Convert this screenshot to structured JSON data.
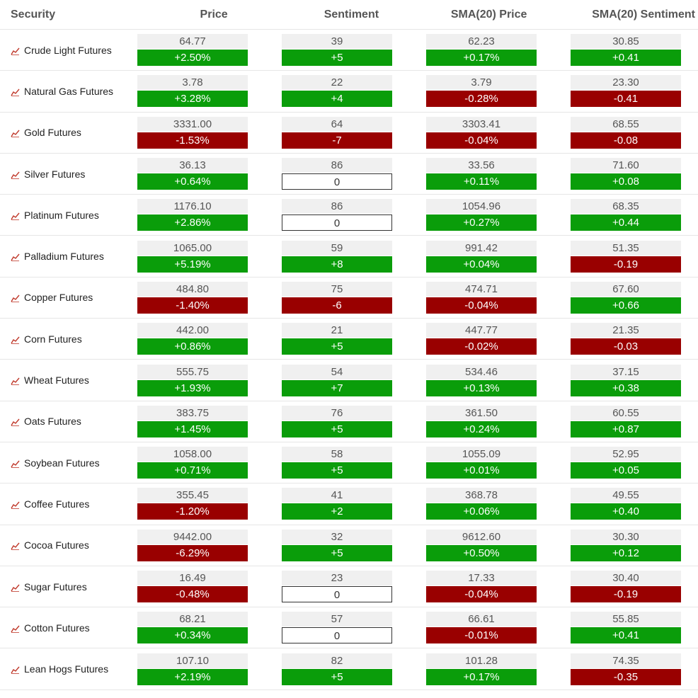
{
  "columns": {
    "security": "Security",
    "price": "Price",
    "sentiment": "Sentiment",
    "sma_price": "SMA(20) Price",
    "sma_sentiment": "SMA(20) Sentiment"
  },
  "icon": "chart-line-icon",
  "colors": {
    "up": "#0a9d0a",
    "down": "#990000"
  },
  "rows": [
    {
      "name": "Crude Light Futures",
      "price": "64.77",
      "price_chg": "+2.50%",
      "sent": "39",
      "sent_chg": "+5",
      "sma_price": "62.23",
      "sma_price_chg": "+0.17%",
      "sma_sent": "30.85",
      "sma_sent_chg": "+0.41"
    },
    {
      "name": "Natural Gas Futures",
      "price": "3.78",
      "price_chg": "+3.28%",
      "sent": "22",
      "sent_chg": "+4",
      "sma_price": "3.79",
      "sma_price_chg": "-0.28%",
      "sma_sent": "23.30",
      "sma_sent_chg": "-0.41"
    },
    {
      "name": "Gold Futures",
      "price": "3331.00",
      "price_chg": "-1.53%",
      "sent": "64",
      "sent_chg": "-7",
      "sma_price": "3303.41",
      "sma_price_chg": "-0.04%",
      "sma_sent": "68.55",
      "sma_sent_chg": "-0.08"
    },
    {
      "name": "Silver Futures",
      "price": "36.13",
      "price_chg": "+0.64%",
      "sent": "86",
      "sent_chg": "0",
      "sma_price": "33.56",
      "sma_price_chg": "+0.11%",
      "sma_sent": "71.60",
      "sma_sent_chg": "+0.08"
    },
    {
      "name": "Platinum Futures",
      "price": "1176.10",
      "price_chg": "+2.86%",
      "sent": "86",
      "sent_chg": "0",
      "sma_price": "1054.96",
      "sma_price_chg": "+0.27%",
      "sma_sent": "68.35",
      "sma_sent_chg": "+0.44"
    },
    {
      "name": "Palladium Futures",
      "price": "1065.00",
      "price_chg": "+5.19%",
      "sent": "59",
      "sent_chg": "+8",
      "sma_price": "991.42",
      "sma_price_chg": "+0.04%",
      "sma_sent": "51.35",
      "sma_sent_chg": "-0.19"
    },
    {
      "name": "Copper Futures",
      "price": "484.80",
      "price_chg": "-1.40%",
      "sent": "75",
      "sent_chg": "-6",
      "sma_price": "474.71",
      "sma_price_chg": "-0.04%",
      "sma_sent": "67.60",
      "sma_sent_chg": "+0.66"
    },
    {
      "name": "Corn Futures",
      "price": "442.00",
      "price_chg": "+0.86%",
      "sent": "21",
      "sent_chg": "+5",
      "sma_price": "447.77",
      "sma_price_chg": "-0.02%",
      "sma_sent": "21.35",
      "sma_sent_chg": "-0.03"
    },
    {
      "name": "Wheat Futures",
      "price": "555.75",
      "price_chg": "+1.93%",
      "sent": "54",
      "sent_chg": "+7",
      "sma_price": "534.46",
      "sma_price_chg": "+0.13%",
      "sma_sent": "37.15",
      "sma_sent_chg": "+0.38"
    },
    {
      "name": "Oats Futures",
      "price": "383.75",
      "price_chg": "+1.45%",
      "sent": "76",
      "sent_chg": "+5",
      "sma_price": "361.50",
      "sma_price_chg": "+0.24%",
      "sma_sent": "60.55",
      "sma_sent_chg": "+0.87"
    },
    {
      "name": "Soybean Futures",
      "price": "1058.00",
      "price_chg": "+0.71%",
      "sent": "58",
      "sent_chg": "+5",
      "sma_price": "1055.09",
      "sma_price_chg": "+0.01%",
      "sma_sent": "52.95",
      "sma_sent_chg": "+0.05"
    },
    {
      "name": "Coffee Futures",
      "price": "355.45",
      "price_chg": "-1.20%",
      "sent": "41",
      "sent_chg": "+2",
      "sma_price": "368.78",
      "sma_price_chg": "+0.06%",
      "sma_sent": "49.55",
      "sma_sent_chg": "+0.40"
    },
    {
      "name": "Cocoa Futures",
      "price": "9442.00",
      "price_chg": "-6.29%",
      "sent": "32",
      "sent_chg": "+5",
      "sma_price": "9612.60",
      "sma_price_chg": "+0.50%",
      "sma_sent": "30.30",
      "sma_sent_chg": "+0.12"
    },
    {
      "name": "Sugar Futures",
      "price": "16.49",
      "price_chg": "-0.48%",
      "sent": "23",
      "sent_chg": "0",
      "sma_price": "17.33",
      "sma_price_chg": "-0.04%",
      "sma_sent": "30.40",
      "sma_sent_chg": "-0.19"
    },
    {
      "name": "Cotton Futures",
      "price": "68.21",
      "price_chg": "+0.34%",
      "sent": "57",
      "sent_chg": "0",
      "sma_price": "66.61",
      "sma_price_chg": "-0.01%",
      "sma_sent": "55.85",
      "sma_sent_chg": "+0.41"
    },
    {
      "name": "Lean Hogs Futures",
      "price": "107.10",
      "price_chg": "+2.19%",
      "sent": "82",
      "sent_chg": "+5",
      "sma_price": "101.28",
      "sma_price_chg": "+0.17%",
      "sma_sent": "74.35",
      "sma_sent_chg": "-0.35"
    }
  ]
}
